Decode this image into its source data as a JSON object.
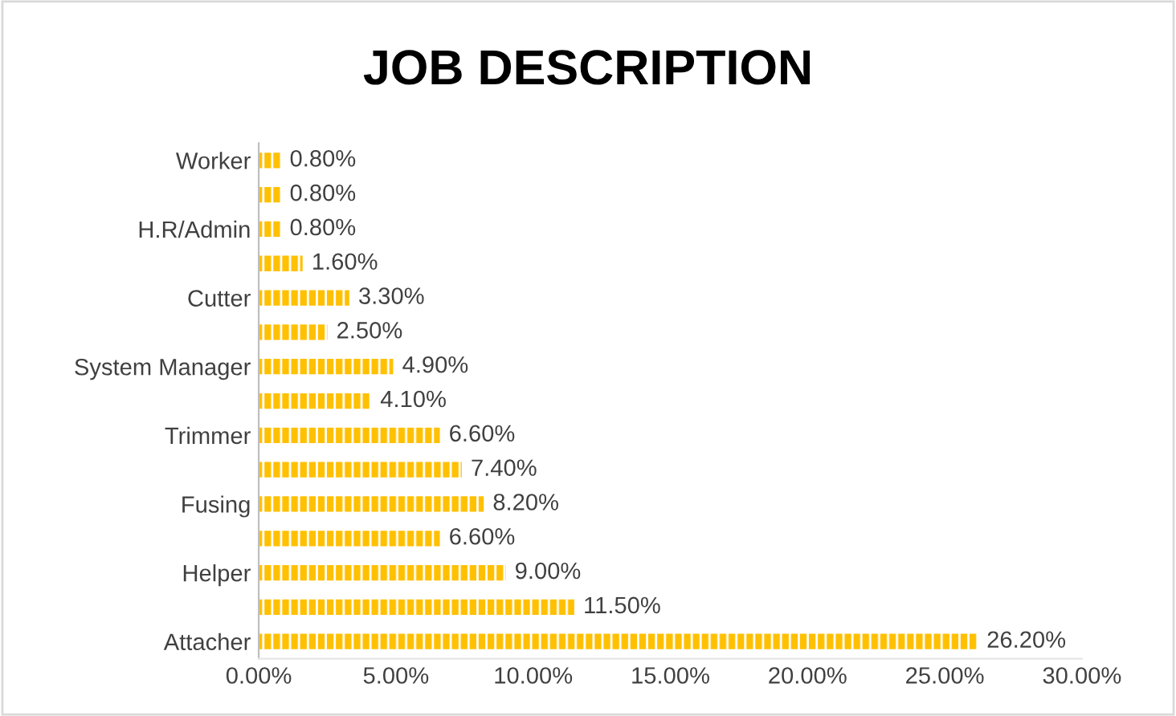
{
  "chart_data": {
    "type": "bar",
    "orientation": "horizontal",
    "title": "JOB DESCRIPTION",
    "categories": [
      "Worker",
      null,
      "H.R/Admin",
      null,
      "Cutter",
      null,
      "System Manager",
      null,
      "Trimmer",
      null,
      "Fusing",
      null,
      "Helper",
      null,
      "Attacher"
    ],
    "values": [
      0.8,
      0.8,
      0.8,
      1.6,
      3.3,
      2.5,
      4.9,
      4.1,
      6.6,
      7.4,
      8.2,
      6.6,
      9.0,
      11.5,
      26.2
    ],
    "value_labels": [
      "0.80%",
      "0.80%",
      "0.80%",
      "1.60%",
      "3.30%",
      "2.50%",
      "4.90%",
      "4.10%",
      "6.60%",
      "7.40%",
      "8.20%",
      "6.60%",
      "9.00%",
      "11.50%",
      "26.20%"
    ],
    "color": "#ffc000",
    "xlim": [
      0,
      30
    ],
    "xticks": [
      {
        "value": 0,
        "label": "0.00%"
      },
      {
        "value": 5,
        "label": "5.00%"
      },
      {
        "value": 10,
        "label": "10.00%"
      },
      {
        "value": 15,
        "label": "15.00%"
      },
      {
        "value": 20,
        "label": "20.00%"
      },
      {
        "value": 25,
        "label": "25.00%"
      },
      {
        "value": 30,
        "label": "30.00%"
      }
    ],
    "grid": false
  }
}
